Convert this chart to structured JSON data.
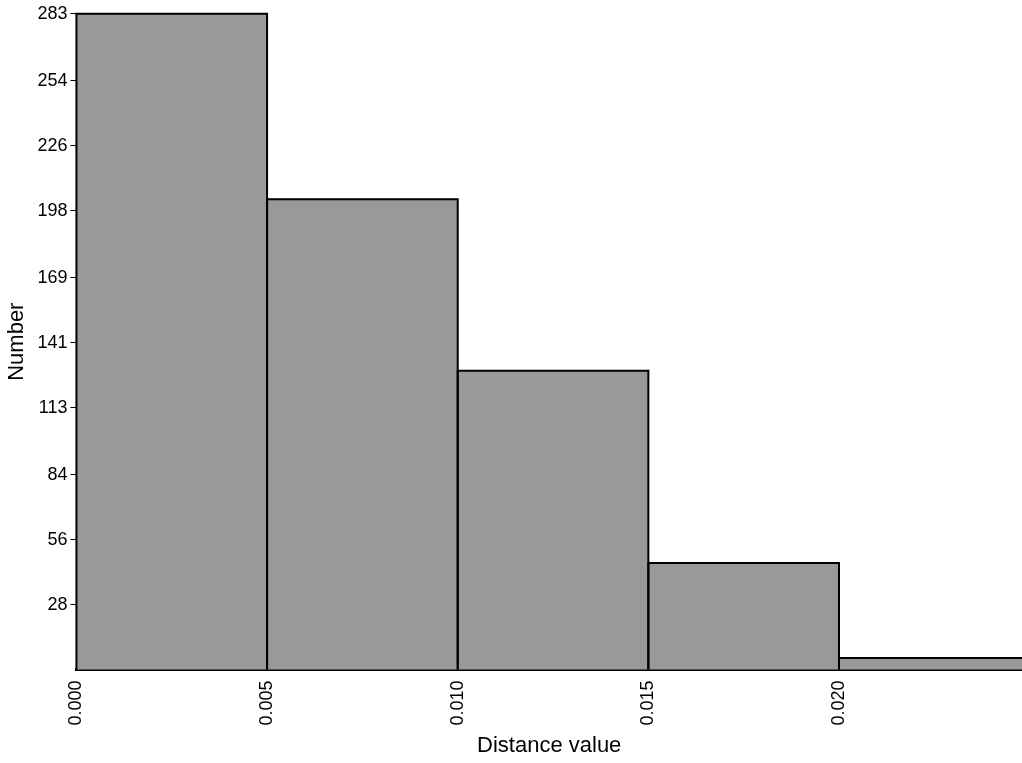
{
  "chart_data": {
    "type": "histogram",
    "xlabel": "Distance value",
    "ylabel": "Number",
    "bins": [
      0,
      0.005,
      0.01,
      0.015,
      0.02,
      0.025
    ],
    "values": [
      283,
      203,
      129,
      46,
      5
    ],
    "color": "#999999",
    "xlim": [
      0,
      0.0248
    ],
    "xticks": [
      {
        "value": 0,
        "label": "0.000"
      },
      {
        "value": 0.005,
        "label": "0.005"
      },
      {
        "value": 0.01,
        "label": "0.010"
      },
      {
        "value": 0.015,
        "label": "0.015"
      },
      {
        "value": 0.02,
        "label": "0.020"
      }
    ],
    "ylim": [
      0,
      283
    ],
    "yticks": [
      28,
      56,
      84,
      113,
      141,
      169,
      198,
      226,
      254,
      283
    ],
    "grid": false,
    "legend": false
  }
}
